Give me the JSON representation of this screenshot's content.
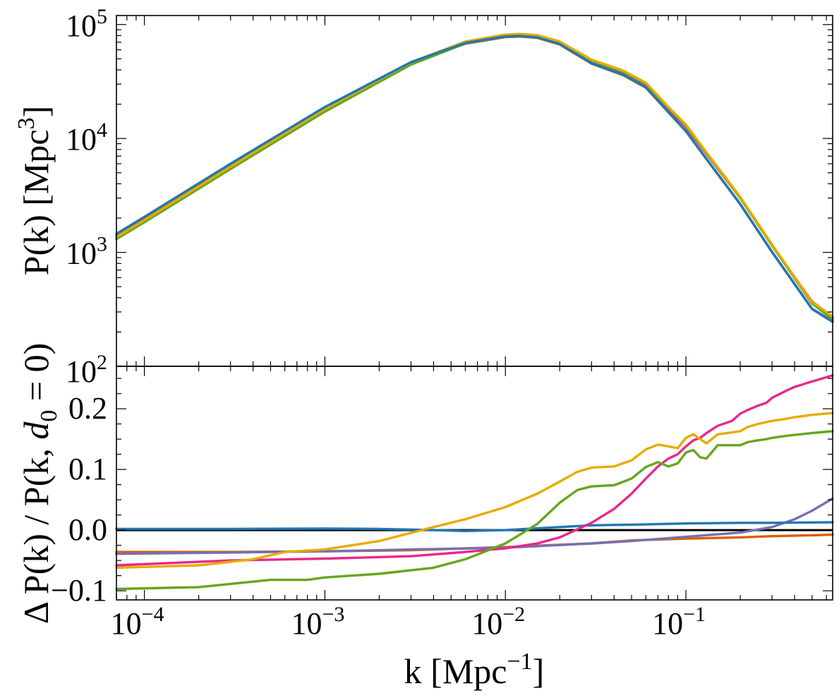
{
  "chart_data": [
    {
      "panel": "top",
      "type": "line",
      "xscale": "log",
      "yscale": "log",
      "xlim": [
        7e-05,
        0.65
      ],
      "ylim": [
        100,
        120000
      ],
      "ylabel": "P(k)  [Mpc^3]",
      "ylabel_main": "P(k)  [Mpc",
      "ylabel_exp": "3",
      "ylabel_close": "]",
      "yticks": [
        {
          "value": 100,
          "base": "10",
          "exp": "2"
        },
        {
          "value": 1000,
          "base": "10",
          "exp": "3"
        },
        {
          "value": 10000,
          "base": "10",
          "exp": "4"
        },
        {
          "value": 100000,
          "base": "10",
          "exp": "5"
        }
      ],
      "series": [
        {
          "name": "pink",
          "color": "#e7298a",
          "x": [
            7e-05,
            0.0001,
            0.0003,
            0.001,
            0.003,
            0.006,
            0.01,
            0.012,
            0.015,
            0.02,
            0.03,
            0.045,
            0.06,
            0.08,
            0.1,
            0.13,
            0.2,
            0.3,
            0.5,
            0.65
          ],
          "y": [
            1380,
            1950,
            5700,
            18100,
            45800,
            69000,
            79000,
            80000,
            78000,
            68500,
            47000,
            37500,
            29500,
            18200,
            12600,
            7300,
            3000,
            1150,
            370,
            270
          ]
        },
        {
          "name": "purple",
          "color": "#7570b3",
          "x": [
            7e-05,
            0.0001,
            0.0003,
            0.001,
            0.003,
            0.006,
            0.01,
            0.012,
            0.015,
            0.02,
            0.03,
            0.045,
            0.06,
            0.08,
            0.1,
            0.13,
            0.2,
            0.3,
            0.5,
            0.65
          ],
          "y": [
            1400,
            1975,
            5780,
            18300,
            45600,
            68000,
            77800,
            78600,
            76600,
            67000,
            45500,
            36000,
            28000,
            17000,
            11600,
            6600,
            2650,
            1010,
            320,
            250
          ]
        },
        {
          "name": "orange",
          "color": "#d95f02",
          "x": [
            7e-05,
            0.0001,
            0.0003,
            0.001,
            0.003,
            0.006,
            0.01,
            0.012,
            0.015,
            0.02,
            0.03,
            0.045,
            0.06,
            0.08,
            0.1,
            0.13,
            0.2,
            0.3,
            0.5,
            0.65
          ],
          "y": [
            1395,
            1970,
            5770,
            18280,
            45550,
            67900,
            77700,
            78500,
            76500,
            66900,
            45400,
            35900,
            27900,
            16950,
            11550,
            6580,
            2640,
            1005,
            318,
            248
          ]
        },
        {
          "name": "green",
          "color": "#66a61e",
          "x": [
            7e-05,
            0.0001,
            0.0003,
            0.001,
            0.003,
            0.006,
            0.01,
            0.012,
            0.015,
            0.02,
            0.03,
            0.045,
            0.06,
            0.08,
            0.1,
            0.13,
            0.2,
            0.3,
            0.5,
            0.65
          ],
          "y": [
            1310,
            1840,
            5400,
            17200,
            44500,
            68200,
            78800,
            80200,
            78400,
            69000,
            48000,
            38500,
            30000,
            18500,
            12900,
            7400,
            3000,
            1150,
            355,
            260
          ]
        },
        {
          "name": "yellow",
          "color": "#e6ab02",
          "x": [
            7e-05,
            0.0001,
            0.0003,
            0.001,
            0.003,
            0.006,
            0.01,
            0.012,
            0.015,
            0.02,
            0.03,
            0.045,
            0.06,
            0.08,
            0.1,
            0.13,
            0.2,
            0.3,
            0.5,
            0.65
          ],
          "y": [
            1360,
            1920,
            5650,
            18100,
            46600,
            71000,
            81500,
            82700,
            80800,
            71000,
            49200,
            39400,
            30800,
            18900,
            13200,
            7550,
            3060,
            1170,
            365,
            275
          ]
        },
        {
          "name": "blue",
          "color": "#1f78b4",
          "x": [
            7e-05,
            0.0001,
            0.0003,
            0.001,
            0.003,
            0.006,
            0.01,
            0.012,
            0.015,
            0.02,
            0.03,
            0.045,
            0.06,
            0.08,
            0.1,
            0.13,
            0.2,
            0.3,
            0.5,
            0.65
          ],
          "y": [
            1455,
            2050,
            6000,
            18900,
            46800,
            69000,
            78500,
            79300,
            77200,
            67400,
            45800,
            36200,
            28200,
            17100,
            11650,
            6620,
            2650,
            1010,
            318,
            245
          ]
        }
      ]
    },
    {
      "panel": "bottom",
      "type": "line",
      "xscale": "log",
      "yscale": "linear",
      "xlim": [
        7e-05,
        0.65
      ],
      "ylim": [
        -0.115,
        0.27
      ],
      "xlabel": "k  [Mpc^-1]",
      "xlabel_main": "k  [Mpc",
      "xlabel_exp": "−1",
      "xlabel_close": "]",
      "ylabel": "ΔP(k) / P(k, d0=0)",
      "ylabel_main": "Δ P(k) / P(k, ",
      "ylabel_var": "d",
      "ylabel_sub": "0",
      "ylabel_close": " = 0)",
      "yticks": [
        {
          "value": -0.1,
          "label": "−0.1"
        },
        {
          "value": 0.0,
          "label": "0.0"
        },
        {
          "value": 0.1,
          "label": "0.1"
        },
        {
          "value": 0.2,
          "label": "0.2"
        }
      ],
      "xticks": [
        {
          "value": 0.0001,
          "base": "10",
          "exp": "−4"
        },
        {
          "value": 0.001,
          "base": "10",
          "exp": "−3"
        },
        {
          "value": 0.01,
          "base": "10",
          "exp": "−2"
        },
        {
          "value": 0.1,
          "base": "10",
          "exp": "−1"
        }
      ],
      "reference_line": {
        "value": 0.0,
        "color": "#000000"
      },
      "series": [
        {
          "name": "orange",
          "color": "#d95f02",
          "x": [
            7e-05,
            0.0003,
            0.001,
            0.003,
            0.01,
            0.03,
            0.05,
            0.1,
            0.2,
            0.3,
            0.5,
            0.65
          ],
          "y": [
            -0.036,
            -0.036,
            -0.035,
            -0.033,
            -0.028,
            -0.022,
            -0.017,
            -0.014,
            -0.012,
            -0.01,
            -0.0085,
            -0.0075
          ]
        },
        {
          "name": "purple",
          "color": "#7570b3",
          "x": [
            7e-05,
            0.0003,
            0.001,
            0.003,
            0.01,
            0.03,
            0.05,
            0.1,
            0.2,
            0.3,
            0.4,
            0.5,
            0.65
          ],
          "y": [
            -0.039,
            -0.037,
            -0.035,
            -0.032,
            -0.029,
            -0.022,
            -0.018,
            -0.011,
            -0.004,
            0.005,
            0.018,
            0.032,
            0.052
          ]
        },
        {
          "name": "blue",
          "color": "#1f78b4",
          "x": [
            7e-05,
            0.0003,
            0.001,
            0.002,
            0.004,
            0.006,
            0.01,
            0.02,
            0.03,
            0.05,
            0.1,
            0.2,
            0.3,
            0.65
          ],
          "y": [
            0.002,
            0.002,
            0.0025,
            0.002,
            0.0,
            -0.0015,
            0.0,
            0.005,
            0.008,
            0.009,
            0.011,
            0.012,
            0.012,
            0.013
          ]
        },
        {
          "name": "pink",
          "color": "#e7298a",
          "x": [
            7e-05,
            0.0003,
            0.001,
            0.003,
            0.006,
            0.01,
            0.015,
            0.02,
            0.03,
            0.04,
            0.05,
            0.06,
            0.07,
            0.08,
            0.09,
            0.1,
            0.11,
            0.12,
            0.13,
            0.15,
            0.18,
            0.2,
            0.22,
            0.25,
            0.28,
            0.3,
            0.35,
            0.4,
            0.5,
            0.65
          ],
          "y": [
            -0.058,
            -0.05,
            -0.047,
            -0.043,
            -0.036,
            -0.03,
            -0.022,
            -0.012,
            0.012,
            0.035,
            0.06,
            0.085,
            0.105,
            0.118,
            0.125,
            0.138,
            0.148,
            0.152,
            0.16,
            0.172,
            0.18,
            0.192,
            0.198,
            0.205,
            0.21,
            0.218,
            0.228,
            0.236,
            0.245,
            0.255
          ]
        },
        {
          "name": "yellow",
          "color": "#e6ab02",
          "x": [
            7e-05,
            0.0002,
            0.0004,
            0.0006,
            0.001,
            0.002,
            0.004,
            0.006,
            0.01,
            0.015,
            0.02,
            0.025,
            0.03,
            0.04,
            0.05,
            0.06,
            0.07,
            0.08,
            0.09,
            0.1,
            0.11,
            0.12,
            0.13,
            0.15,
            0.17,
            0.2,
            0.22,
            0.25,
            0.28,
            0.3,
            0.35,
            0.4,
            0.5,
            0.65
          ],
          "y": [
            -0.062,
            -0.058,
            -0.048,
            -0.036,
            -0.032,
            -0.018,
            0.005,
            0.018,
            0.038,
            0.06,
            0.08,
            0.096,
            0.103,
            0.105,
            0.115,
            0.133,
            0.141,
            0.138,
            0.135,
            0.152,
            0.158,
            0.15,
            0.143,
            0.158,
            0.16,
            0.163,
            0.17,
            0.175,
            0.178,
            0.18,
            0.183,
            0.186,
            0.19,
            0.193
          ]
        },
        {
          "name": "green",
          "color": "#66a61e",
          "x": [
            7e-05,
            0.0002,
            0.0005,
            0.0008,
            0.001,
            0.002,
            0.004,
            0.006,
            0.01,
            0.015,
            0.02,
            0.025,
            0.03,
            0.04,
            0.05,
            0.06,
            0.07,
            0.08,
            0.09,
            0.1,
            0.11,
            0.12,
            0.13,
            0.15,
            0.17,
            0.2,
            0.22,
            0.25,
            0.28,
            0.3,
            0.35,
            0.4,
            0.5,
            0.65
          ],
          "y": [
            -0.097,
            -0.094,
            -0.082,
            -0.082,
            -0.078,
            -0.072,
            -0.062,
            -0.048,
            -0.022,
            0.01,
            0.045,
            0.066,
            0.072,
            0.074,
            0.085,
            0.104,
            0.112,
            0.105,
            0.11,
            0.128,
            0.132,
            0.12,
            0.118,
            0.14,
            0.14,
            0.14,
            0.145,
            0.148,
            0.15,
            0.152,
            0.155,
            0.157,
            0.16,
            0.163
          ]
        }
      ]
    }
  ]
}
